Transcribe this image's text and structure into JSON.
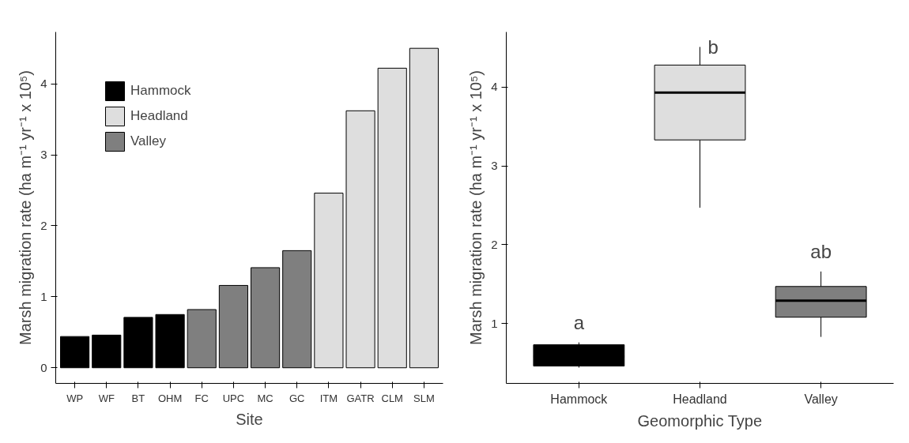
{
  "chart_data": [
    {
      "type": "bar",
      "xlabel": "Site",
      "ylabel": "Marsh migration rate (ha m⁻¹ yr⁻¹ x 10⁵)",
      "categories": [
        "WP",
        "WF",
        "BT",
        "OHM",
        "FC",
        "UPC",
        "MC",
        "GC",
        "ITM",
        "GATR",
        "CLM",
        "SLM"
      ],
      "series": [
        {
          "name": "Hammock",
          "color": "#000000",
          "values": [
            0.44,
            0.46,
            0.71,
            0.75,
            null,
            null,
            null,
            null,
            null,
            null,
            null,
            null
          ]
        },
        {
          "name": "Headland",
          "color": "#dedede",
          "values": [
            null,
            null,
            null,
            null,
            null,
            null,
            null,
            null,
            2.46,
            3.62,
            4.22,
            4.5
          ]
        },
        {
          "name": "Valley",
          "color": "#7f7f7f",
          "values": [
            null,
            null,
            null,
            null,
            0.82,
            1.16,
            1.41,
            1.65,
            null,
            null,
            null,
            null
          ]
        }
      ],
      "ylim": [
        -0.22,
        4.73
      ],
      "yticks": [
        0,
        1,
        2,
        3,
        4
      ],
      "grid": false,
      "legend": "top left"
    },
    {
      "type": "box",
      "xlabel": "Geomorphic Type",
      "ylabel": "Marsh migration rate (ha m⁻¹ yr⁻¹ x 10⁵)",
      "categories": [
        "Hammock",
        "Headland",
        "Valley"
      ],
      "colors": [
        "#000000",
        "#dedede",
        "#7f7f7f"
      ],
      "boxes": [
        {
          "low": 0.44,
          "q1": 0.46,
          "median": 0.58,
          "q3": 0.73,
          "high": 0.76
        },
        {
          "low": 2.47,
          "q1": 3.33,
          "median": 3.93,
          "q3": 4.28,
          "high": 4.51
        },
        {
          "low": 0.83,
          "q1": 1.08,
          "median": 1.29,
          "q3": 1.47,
          "high": 1.66
        }
      ],
      "annotations": [
        "a",
        "b",
        "ab"
      ],
      "ylim": [
        0.24,
        4.7
      ],
      "yticks": [
        1,
        2,
        3,
        4
      ],
      "grid": false
    }
  ]
}
